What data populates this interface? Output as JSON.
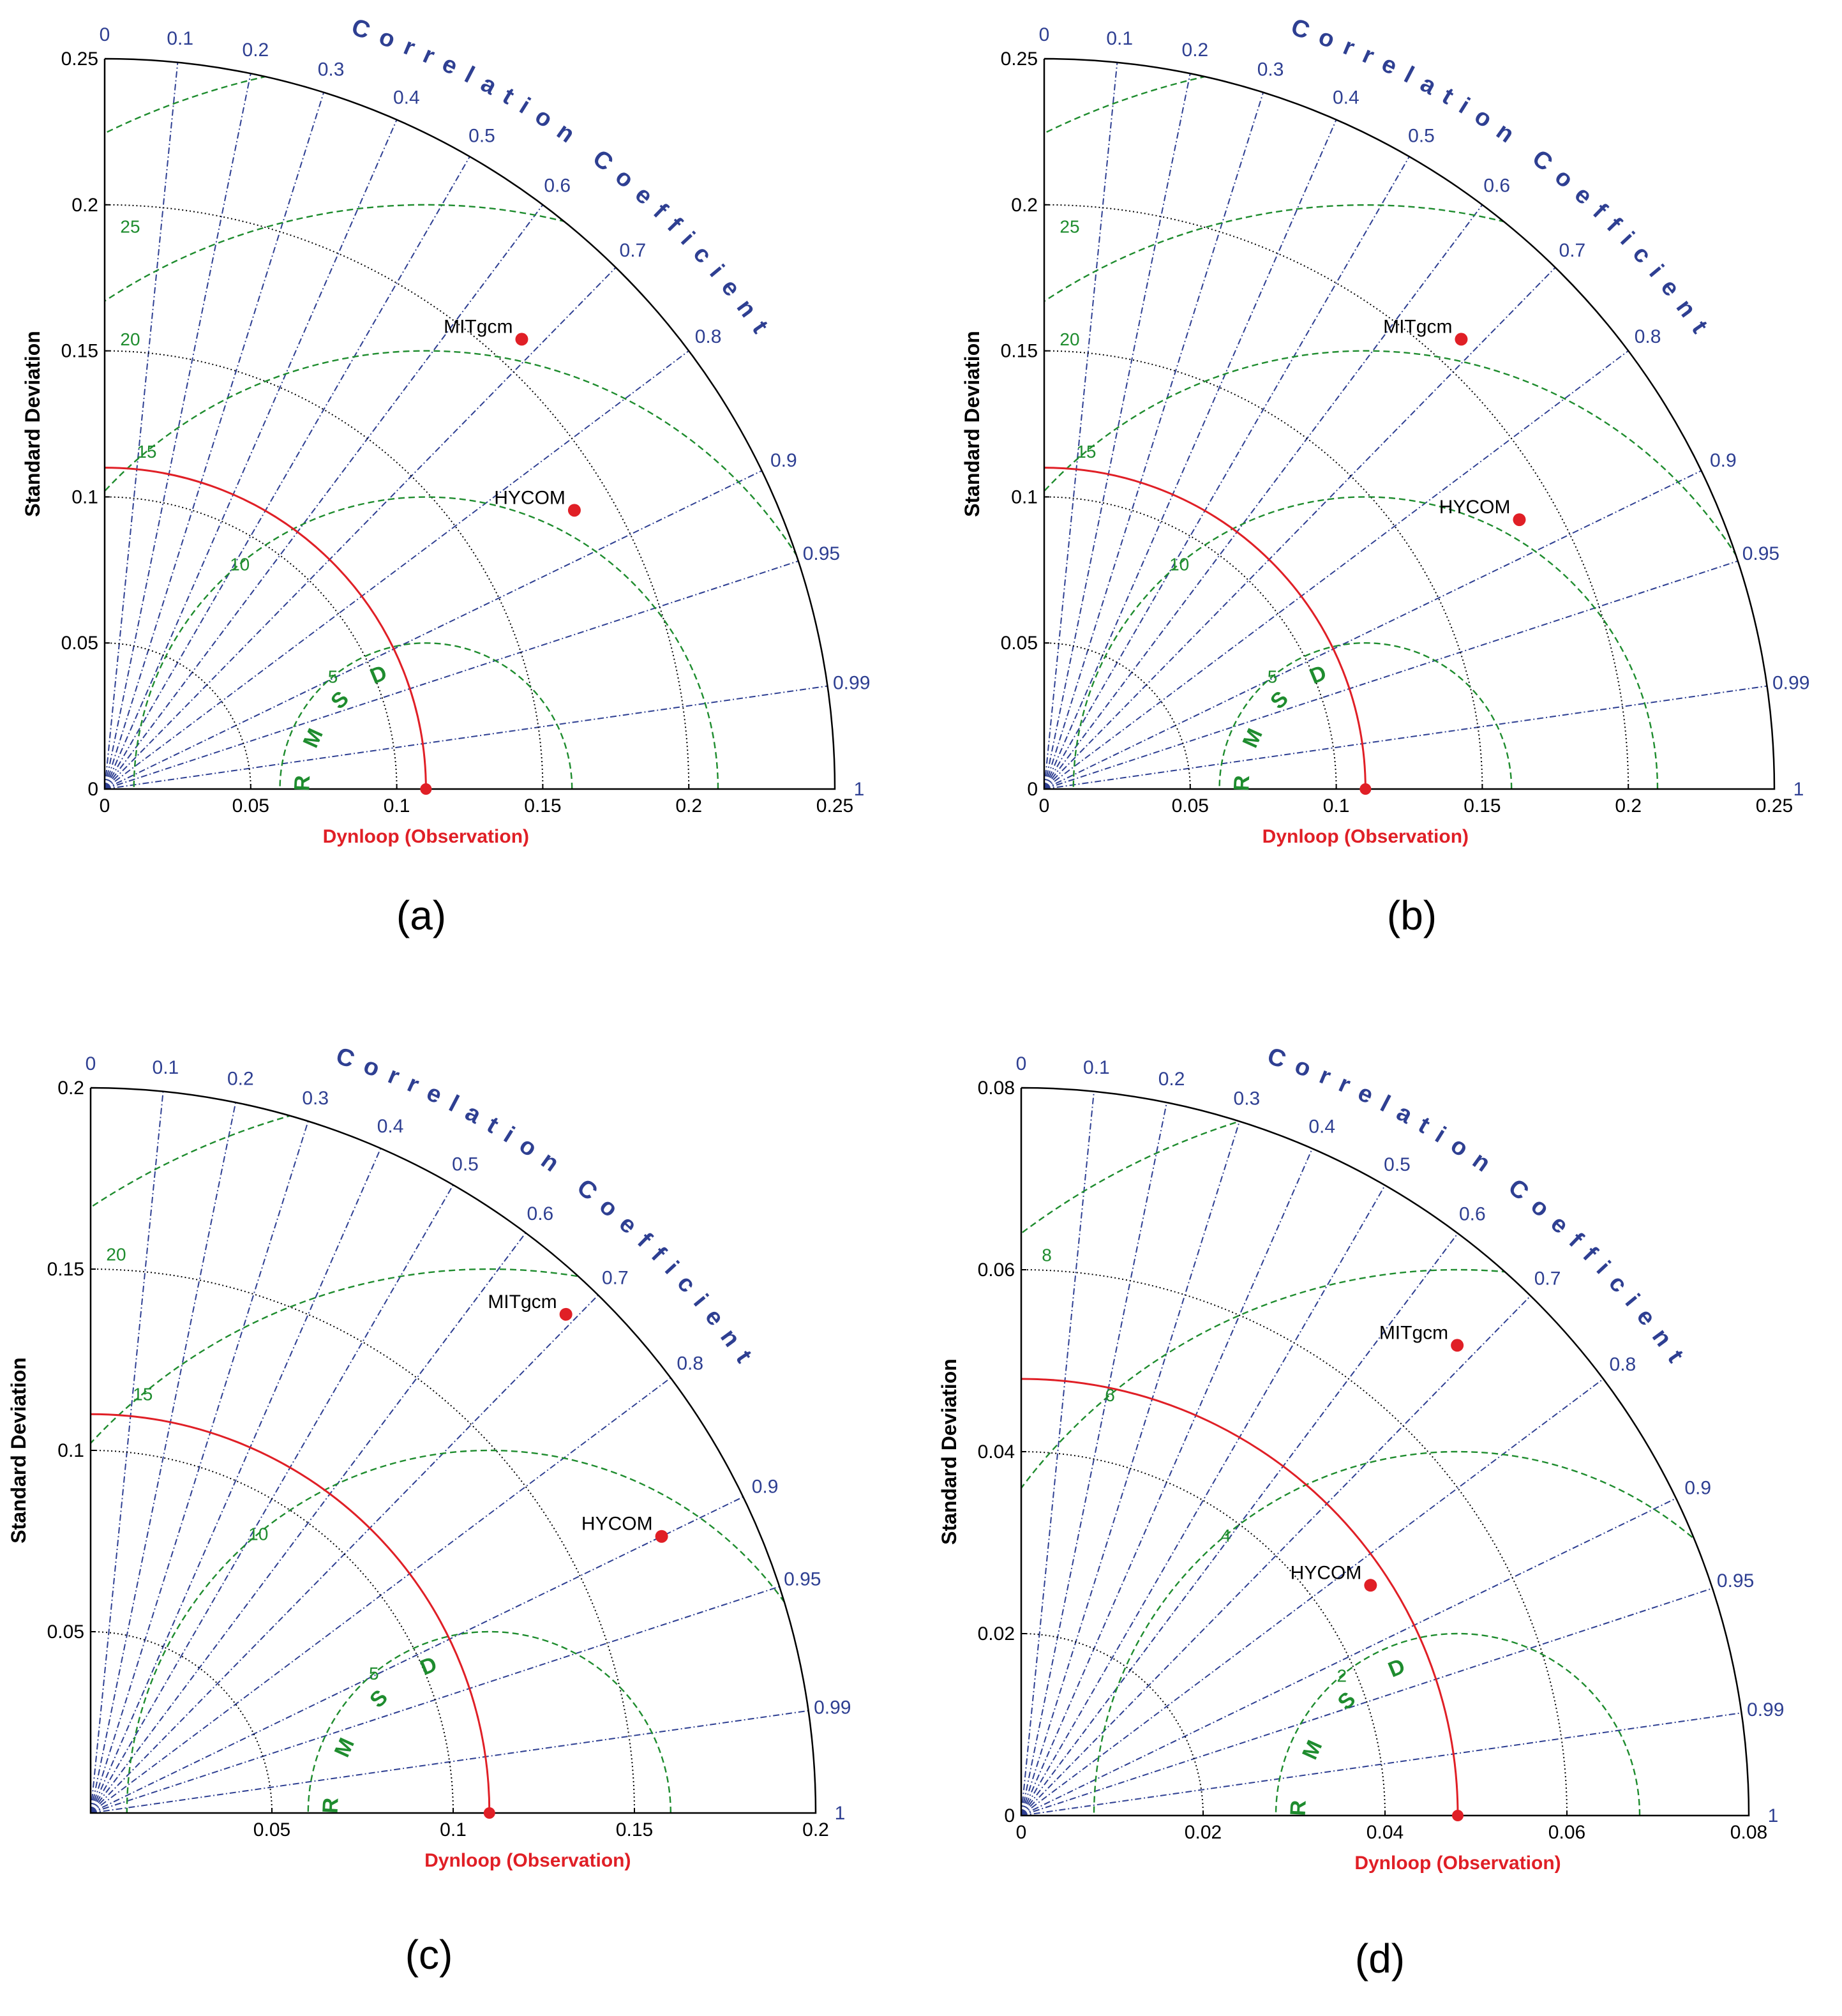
{
  "colors": {
    "axis": "#000000",
    "correlation": "#2e3f92",
    "rmsd": "#1e8c2e",
    "observation": "#e01f26",
    "model_point": "#e01f26",
    "std_arc": "#000000"
  },
  "chart_data": [
    {
      "type": "taylor",
      "panel_label": "(a)",
      "ylabel": "Standard Deviation",
      "xlabel": "Dynloop (Observation)",
      "correlation_axis_label": "Correlation Coefficient",
      "rmsd_label": "RMSD",
      "std_max": 0.25,
      "std_ticks": [
        0,
        0.05,
        0.1,
        0.15,
        0.2,
        0.25
      ],
      "std_tick_labels": [
        "0",
        "0.05",
        "0.1",
        "0.15",
        "0.2",
        "0.25"
      ],
      "x_tick_labels": [
        "0",
        "0.05",
        "0.1",
        "0.15",
        "0.2",
        "0.25"
      ],
      "correlation_ticks": [
        0,
        0.1,
        0.2,
        0.3,
        0.4,
        0.5,
        0.6,
        0.7,
        0.8,
        0.9,
        0.95,
        0.99,
        1
      ],
      "correlation_tick_labels": [
        "0",
        "0.1",
        "0.2",
        "0.3",
        "0.4",
        "0.5",
        "0.6",
        "0.7",
        "0.8",
        "0.9",
        "0.95",
        "0.99",
        "1"
      ],
      "rms_contours": [
        0.05,
        0.1,
        0.15,
        0.2,
        0.25
      ],
      "rms_contour_labels": [
        "5",
        "10",
        "15",
        "20",
        "25"
      ],
      "observation": {
        "name": "Dynloop (Observation)",
        "std": 0.11
      },
      "models": [
        {
          "name": "MITgcm",
          "std": 0.21,
          "corr": 0.68
        },
        {
          "name": "HYCOM",
          "std": 0.187,
          "corr": 0.86
        }
      ]
    },
    {
      "type": "taylor",
      "panel_label": "(b)",
      "ylabel": "Standard Deviation",
      "xlabel": "Dynloop (Observation)",
      "correlation_axis_label": "Correlation Coefficient",
      "rmsd_label": "RMSD",
      "std_max": 0.25,
      "std_ticks": [
        0,
        0.05,
        0.1,
        0.15,
        0.2,
        0.25
      ],
      "std_tick_labels": [
        "0",
        "0.05",
        "0.1",
        "0.15",
        "0.2",
        "0.25"
      ],
      "x_tick_labels": [
        "0",
        "0.05",
        "0.1",
        "0.15",
        "0.2",
        "0.25"
      ],
      "correlation_ticks": [
        0,
        0.1,
        0.2,
        0.3,
        0.4,
        0.5,
        0.6,
        0.7,
        0.8,
        0.9,
        0.95,
        0.99,
        1
      ],
      "correlation_tick_labels": [
        "0",
        "0.1",
        "0.2",
        "0.3",
        "0.4",
        "0.5",
        "0.6",
        "0.7",
        "0.8",
        "0.9",
        "0.95",
        "0.99",
        "1"
      ],
      "rms_contours": [
        0.05,
        0.1,
        0.15,
        0.2,
        0.25
      ],
      "rms_contour_labels": [
        "5",
        "10",
        "15",
        "20",
        "25"
      ],
      "observation": {
        "name": "Dynloop (Observation)",
        "std": 0.11
      },
      "models": [
        {
          "name": "MITgcm",
          "std": 0.21,
          "corr": 0.68
        },
        {
          "name": "HYCOM",
          "std": 0.187,
          "corr": 0.87
        }
      ]
    },
    {
      "type": "taylor",
      "panel_label": "(c)",
      "ylabel": "Standard Deviation",
      "xlabel": "Dynloop (Observation)",
      "correlation_axis_label": "Correlation Coefficient",
      "rmsd_label": "RMSD",
      "std_max": 0.2,
      "std_ticks": [
        0.05,
        0.1,
        0.15,
        0.2
      ],
      "std_tick_labels": [
        "0.05",
        "0.1",
        "0.15",
        "0.2"
      ],
      "x_tick_labels": [
        "0.05",
        "0.1",
        "0.15",
        "0.2"
      ],
      "correlation_ticks": [
        0,
        0.1,
        0.2,
        0.3,
        0.4,
        0.5,
        0.6,
        0.7,
        0.8,
        0.9,
        0.95,
        0.99,
        1
      ],
      "correlation_tick_labels": [
        "0",
        "0.1",
        "0.2",
        "0.3",
        "0.4",
        "0.5",
        "0.6",
        "0.7",
        "0.8",
        "0.9",
        "0.95",
        "0.99",
        "1"
      ],
      "rms_contours": [
        0.05,
        0.1,
        0.15,
        0.2
      ],
      "rms_contour_labels": [
        "5",
        "10",
        "15",
        "20"
      ],
      "observation": {
        "name": "Dynloop (Observation)",
        "std": 0.11
      },
      "models": [
        {
          "name": "MITgcm",
          "std": 0.19,
          "corr": 0.69
        },
        {
          "name": "HYCOM",
          "std": 0.175,
          "corr": 0.9
        }
      ]
    },
    {
      "type": "taylor",
      "panel_label": "(d)",
      "ylabel": "Standard Deviation",
      "xlabel": "Dynloop (Observation)",
      "correlation_axis_label": "Correlation Coefficient",
      "rmsd_label": "RMSD",
      "std_max": 0.08,
      "std_ticks": [
        0,
        0.02,
        0.04,
        0.06,
        0.08
      ],
      "std_tick_labels": [
        "0",
        "0.02",
        "0.04",
        "0.06",
        "0.08"
      ],
      "x_tick_labels": [
        "0",
        "0.02",
        "0.04",
        "0.06",
        "0.08"
      ],
      "correlation_ticks": [
        0,
        0.1,
        0.2,
        0.3,
        0.4,
        0.5,
        0.6,
        0.7,
        0.8,
        0.9,
        0.95,
        0.99,
        1
      ],
      "correlation_tick_labels": [
        "0",
        "0.1",
        "0.2",
        "0.3",
        "0.4",
        "0.5",
        "0.6",
        "0.7",
        "0.8",
        "0.9",
        "0.95",
        "0.99",
        "1"
      ],
      "rms_contours": [
        0.02,
        0.04,
        0.06,
        0.08
      ],
      "rms_contour_labels": [
        "2",
        "4",
        "6",
        "8"
      ],
      "observation": {
        "name": "Dynloop (Observation)",
        "std": 0.048
      },
      "models": [
        {
          "name": "MITgcm",
          "std": 0.0705,
          "corr": 0.68
        },
        {
          "name": "HYCOM",
          "std": 0.046,
          "corr": 0.835
        }
      ]
    }
  ]
}
